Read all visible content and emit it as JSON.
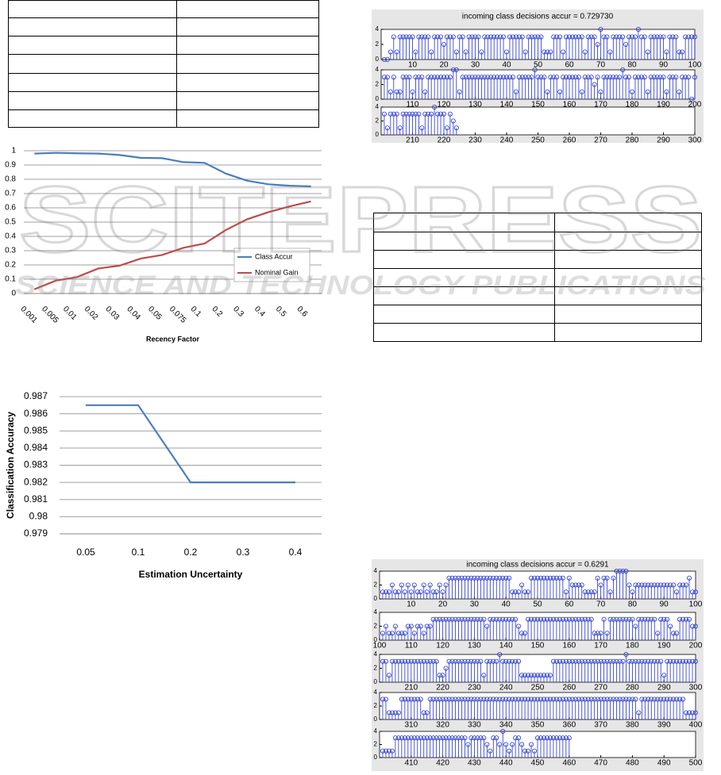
{
  "watermark": {
    "logo": "SCITEPRESS",
    "tagline": "SCIENCE AND TECHNOLOGY PUBLICATIONS"
  },
  "chart_data": [
    {
      "type": "line",
      "xlabel": "Recency Factor",
      "categories": [
        "0.001",
        "0.005",
        "0.01",
        "0.02",
        "0.03",
        "0.04",
        "0.05",
        "0.075",
        "0.1",
        "0.2",
        "0.3",
        "0.4",
        "0.5",
        "0.6"
      ],
      "series": [
        {
          "name": "Class Accur",
          "color": "#4a7ebb",
          "values": [
            0.98,
            0.985,
            0.982,
            0.98,
            0.97,
            0.95,
            0.948,
            0.92,
            0.915,
            0.84,
            0.79,
            0.765,
            0.755,
            0.75
          ]
        },
        {
          "name": "Nominal Gain",
          "color": "#be4b48",
          "values": [
            0.03,
            0.09,
            0.115,
            0.175,
            0.195,
            0.245,
            0.27,
            0.32,
            0.35,
            0.445,
            0.52,
            0.57,
            0.61,
            0.645
          ]
        }
      ],
      "ylim": [
        0,
        1
      ],
      "yticks": [
        0,
        0.1,
        0.2,
        0.3,
        0.4,
        0.5,
        0.6,
        0.7,
        0.8,
        0.9,
        1
      ],
      "grid": true,
      "legend": "lower right"
    },
    {
      "type": "line",
      "xlabel": "Estimation Uncertainty",
      "ylabel": "Classification Accuracy",
      "categories": [
        "0.05",
        "0.1",
        "0.2",
        "0.3",
        "0.4"
      ],
      "series": [
        {
          "color": "#4a7ebb",
          "values": [
            0.9865,
            0.9865,
            0.982,
            0.982,
            0.982
          ]
        }
      ],
      "ylim": [
        0.979,
        0.987
      ],
      "yticks": [
        0.979,
        0.98,
        0.981,
        0.982,
        0.983,
        0.984,
        0.985,
        0.986,
        0.987
      ],
      "grid": true
    },
    {
      "type": "stem",
      "title": "incoming class decisions accur = 0.729730",
      "color": "#2233cc",
      "ylim": [
        0,
        4
      ],
      "yticks": [
        0,
        2,
        4
      ],
      "panels": [
        {
          "xlim": [
            0,
            100
          ],
          "xticks": [
            10,
            20,
            30,
            40,
            50,
            60,
            70,
            80,
            90,
            100
          ],
          "values": [
            0,
            0,
            1,
            3,
            1,
            3,
            3,
            3,
            3,
            3,
            1,
            3,
            3,
            3,
            3,
            1,
            3,
            3,
            3,
            2,
            3,
            3,
            3,
            1,
            3,
            3,
            1,
            3,
            3,
            3,
            3,
            1,
            3,
            3,
            3,
            3,
            3,
            3,
            3,
            1,
            3,
            3,
            3,
            3,
            3,
            1,
            3,
            3,
            3,
            3,
            3,
            1,
            1,
            1,
            3,
            3,
            3,
            1,
            3,
            3,
            3,
            3,
            3,
            3,
            1,
            3,
            3,
            3,
            2,
            4,
            3,
            3,
            1,
            3,
            3,
            3,
            3,
            2,
            3,
            3,
            3,
            4,
            3,
            3,
            1,
            3,
            3,
            3,
            3,
            3,
            1,
            3,
            3,
            3,
            1,
            1,
            3,
            3,
            3,
            3
          ]
        },
        {
          "xlim": [
            100,
            200
          ],
          "xticks": [
            110,
            120,
            130,
            140,
            150,
            160,
            170,
            180,
            190,
            200
          ],
          "values": [
            3,
            3,
            1,
            3,
            1,
            1,
            3,
            3,
            3,
            1,
            3,
            3,
            3,
            1,
            3,
            3,
            3,
            3,
            3,
            3,
            3,
            3,
            4,
            4,
            1,
            3,
            3,
            3,
            3,
            3,
            3,
            3,
            3,
            3,
            3,
            3,
            3,
            3,
            3,
            3,
            3,
            3,
            1,
            3,
            3,
            3,
            3,
            3,
            4,
            3,
            3,
            3,
            1,
            3,
            3,
            3,
            1,
            3,
            3,
            3,
            3,
            3,
            3,
            1,
            3,
            3,
            3,
            2,
            3,
            1,
            3,
            3,
            3,
            3,
            3,
            3,
            4,
            3,
            3,
            1,
            3,
            3,
            3,
            3,
            1,
            3,
            3,
            3,
            3,
            3,
            1,
            3,
            3,
            3,
            1,
            3,
            3,
            3,
            0,
            3
          ]
        },
        {
          "xlim": [
            200,
            300
          ],
          "xticks": [
            210,
            220,
            230,
            240,
            250,
            260,
            270,
            280,
            290,
            300
          ],
          "values": [
            3,
            1,
            3,
            3,
            3,
            1,
            3,
            3,
            3,
            3,
            3,
            3,
            1,
            3,
            3,
            3,
            4,
            3,
            3,
            3,
            1,
            3,
            2,
            1
          ]
        }
      ]
    },
    {
      "type": "stem",
      "title": "incoming class decisions accur = 0.6291",
      "color": "#2233cc",
      "ylim": [
        0,
        4
      ],
      "yticks": [
        0,
        2,
        4
      ],
      "panels": [
        {
          "xlim": [
            0,
            100
          ],
          "xticks": [
            10,
            20,
            30,
            40,
            50,
            60,
            70,
            80,
            90,
            100
          ],
          "values": [
            1,
            1,
            1,
            2,
            1,
            1,
            2,
            1,
            2,
            1,
            2,
            1,
            1,
            2,
            1,
            2,
            1,
            1,
            2,
            1,
            2,
            3,
            3,
            3,
            3,
            3,
            3,
            3,
            3,
            3,
            3,
            3,
            3,
            3,
            3,
            3,
            3,
            3,
            3,
            3,
            3,
            1,
            1,
            1,
            2,
            1,
            1,
            3,
            3,
            3,
            3,
            3,
            3,
            3,
            3,
            3,
            3,
            3,
            1,
            3,
            2,
            2,
            2,
            2,
            1,
            1,
            1,
            1,
            3,
            2,
            3,
            3,
            1,
            3,
            4,
            4,
            4,
            4,
            2,
            1,
            2,
            2,
            2,
            2,
            2,
            2,
            2,
            2,
            2,
            2,
            2,
            2,
            2,
            1,
            2,
            2,
            2,
            3,
            1,
            1
          ]
        },
        {
          "xlim": [
            100,
            200
          ],
          "xticks": [
            100,
            110,
            120,
            130,
            140,
            150,
            160,
            170,
            180,
            190,
            200
          ],
          "values": [
            1,
            2,
            1,
            1,
            2,
            1,
            1,
            1,
            2,
            2,
            1,
            2,
            2,
            1,
            2,
            2,
            3,
            3,
            3,
            3,
            3,
            3,
            3,
            3,
            3,
            3,
            3,
            3,
            3,
            3,
            3,
            3,
            3,
            2,
            3,
            3,
            3,
            3,
            3,
            3,
            3,
            3,
            3,
            2,
            1,
            1,
            3,
            3,
            3,
            3,
            3,
            3,
            3,
            3,
            3,
            3,
            3,
            3,
            3,
            3,
            3,
            3,
            3,
            3,
            3,
            3,
            3,
            1,
            1,
            1,
            3,
            1,
            3,
            3,
            3,
            3,
            3,
            3,
            3,
            3,
            2,
            3,
            3,
            3,
            3,
            3,
            3,
            1,
            3,
            3,
            3,
            2,
            1,
            1,
            3,
            3,
            3,
            3,
            2,
            2
          ]
        },
        {
          "xlim": [
            200,
            300
          ],
          "xticks": [
            210,
            220,
            230,
            240,
            250,
            260,
            270,
            280,
            290,
            300
          ],
          "values": [
            3,
            3,
            1,
            3,
            3,
            3,
            3,
            3,
            3,
            3,
            3,
            3,
            3,
            3,
            3,
            3,
            3,
            3,
            1,
            1,
            2,
            3,
            3,
            3,
            3,
            3,
            3,
            3,
            3,
            3,
            3,
            3,
            1,
            3,
            3,
            3,
            3,
            4,
            3,
            3,
            3,
            3,
            3,
            3,
            1,
            1,
            1,
            1,
            1,
            1,
            1,
            1,
            1,
            1,
            3,
            3,
            3,
            3,
            3,
            3,
            3,
            3,
            3,
            3,
            3,
            3,
            3,
            3,
            3,
            3,
            3,
            3,
            3,
            3,
            3,
            3,
            3,
            4,
            3,
            3,
            3,
            3,
            3,
            3,
            3,
            3,
            3,
            3,
            3,
            1,
            3,
            3,
            3,
            3,
            3,
            3,
            3,
            3,
            3,
            3
          ]
        },
        {
          "xlim": [
            300,
            400
          ],
          "xticks": [
            310,
            320,
            330,
            340,
            350,
            360,
            370,
            380,
            390,
            400
          ],
          "values": [
            3,
            3,
            1,
            1,
            1,
            1,
            3,
            3,
            3,
            3,
            3,
            3,
            3,
            1,
            1,
            3,
            3,
            3,
            3,
            3,
            3,
            3,
            3,
            3,
            3,
            3,
            3,
            3,
            3,
            3,
            3,
            3,
            3,
            3,
            3,
            3,
            3,
            3,
            3,
            3,
            3,
            3,
            3,
            3,
            3,
            3,
            3,
            3,
            3,
            3,
            3,
            3,
            3,
            3,
            3,
            3,
            3,
            3,
            3,
            3,
            3,
            3,
            3,
            3,
            3,
            3,
            3,
            3,
            3,
            3,
            3,
            3,
            3,
            3,
            3,
            3,
            3,
            3,
            3,
            3,
            3,
            1,
            3,
            3,
            3,
            3,
            3,
            3,
            3,
            3,
            3,
            3,
            3,
            3,
            3,
            3,
            1,
            1,
            1,
            1
          ]
        },
        {
          "xlim": [
            400,
            500
          ],
          "xticks": [
            410,
            420,
            430,
            440,
            450,
            460,
            470,
            480,
            490,
            500
          ],
          "values": [
            1,
            1,
            1,
            1,
            3,
            3,
            3,
            3,
            3,
            3,
            3,
            3,
            3,
            3,
            3,
            3,
            3,
            3,
            3,
            3,
            3,
            3,
            3,
            3,
            3,
            3,
            3,
            2,
            3,
            3,
            3,
            3,
            3,
            2,
            1,
            3,
            3,
            2,
            4,
            2,
            1,
            2,
            3,
            3,
            2,
            1,
            1,
            2,
            1,
            3,
            3,
            3,
            3,
            3,
            3,
            3,
            3,
            3,
            3,
            3
          ]
        }
      ]
    }
  ]
}
